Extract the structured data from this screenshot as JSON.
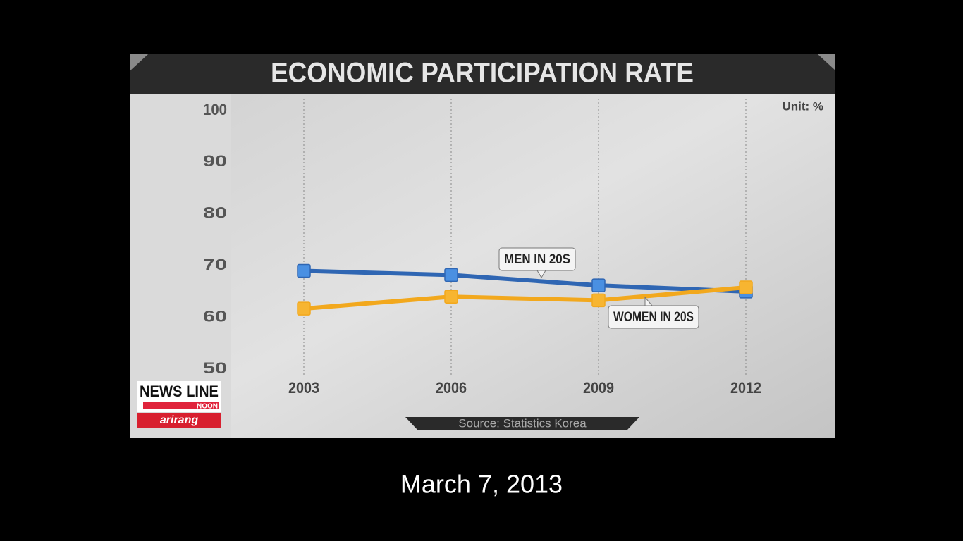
{
  "chart_data": {
    "type": "line",
    "title": "ECONOMIC PARTICIPATION RATE",
    "unit": "Unit: %",
    "source": "Source: Statistics Korea",
    "categories": [
      "2003",
      "2006",
      "2009",
      "2012"
    ],
    "series": [
      {
        "name": "MEN IN 20S",
        "color": "#2f66b3",
        "marker_color": "#4a90e2",
        "values": [
          69.0,
          68.2,
          66.2,
          65.0
        ]
      },
      {
        "name": "WOMEN IN 20S",
        "color": "#f2a81d",
        "marker_color": "#f7b531",
        "values": [
          61.7,
          64.0,
          63.3,
          65.8
        ]
      }
    ],
    "ylim": [
      50,
      100
    ],
    "yticks": [
      50,
      60,
      70,
      80,
      90,
      100
    ],
    "grid": true
  },
  "logo": {
    "name": "NEWS LINE",
    "sub": "NOON",
    "brand": "arirang"
  },
  "caption": "March 7, 2013"
}
